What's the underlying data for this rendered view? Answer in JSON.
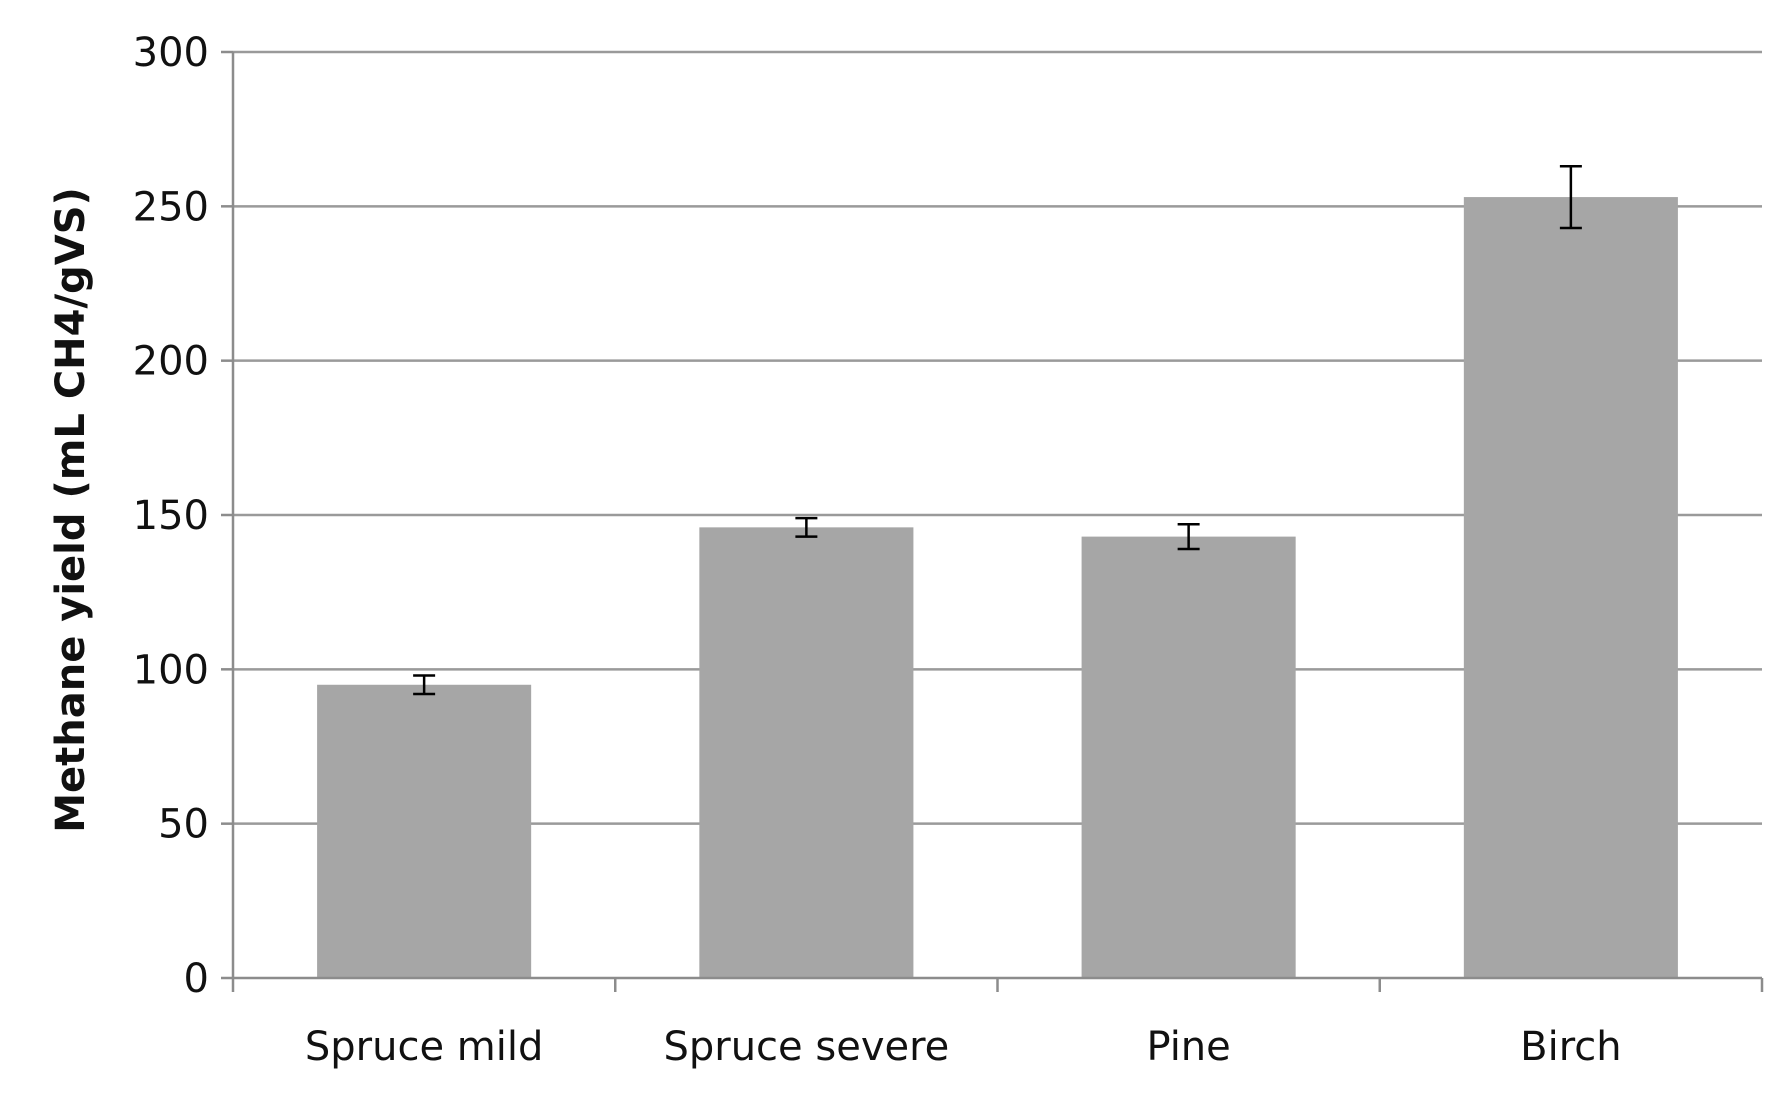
{
  "chart_data": {
    "type": "bar",
    "title": "",
    "xlabel": "",
    "ylabel": "Methane yield (mL CH4/gVS)",
    "categories": [
      "Spruce mild",
      "Spruce severe",
      "Pine",
      "Birch"
    ],
    "values": [
      95,
      146,
      143,
      253
    ],
    "errors": [
      3,
      3,
      4,
      10
    ],
    "ylim": [
      0,
      300
    ],
    "yticks": [
      "0",
      "50",
      "100",
      "150",
      "200",
      "250",
      "300"
    ],
    "grid": true,
    "legend": "none",
    "colors": {
      "bar": "#a6a6a6",
      "grid": "#9a9a9a",
      "axis": "#8c8c8c",
      "error_bar": "#000000"
    }
  }
}
